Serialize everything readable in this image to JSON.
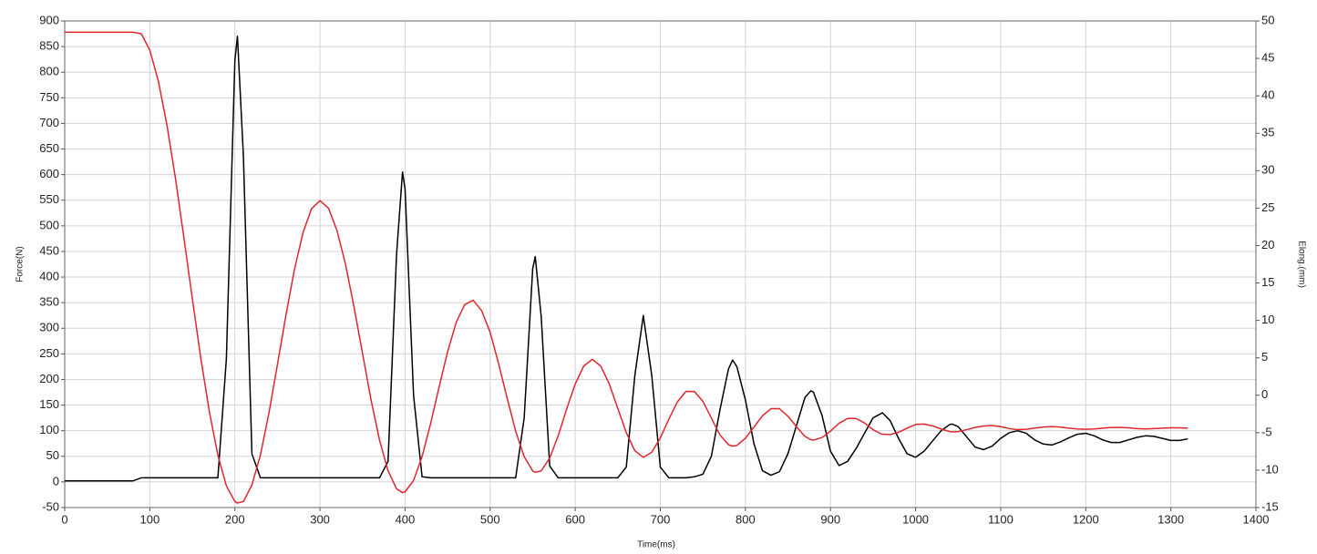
{
  "chart_data": {
    "type": "line",
    "x_label": "Time(ms)",
    "y_label": "Force(N)",
    "y2_label": "Elong.(mm)",
    "xlim": [
      0,
      1400
    ],
    "xticks": [
      0,
      100,
      200,
      300,
      400,
      500,
      600,
      700,
      800,
      900,
      1000,
      1100,
      1200,
      1300,
      1400
    ],
    "ylim": [
      -50,
      900
    ],
    "yticks": [
      -50,
      0,
      50,
      100,
      150,
      200,
      250,
      300,
      350,
      400,
      450,
      500,
      550,
      600,
      650,
      700,
      750,
      800,
      850,
      900
    ],
    "y2lim": [
      -15,
      50
    ],
    "y2ticks": [
      -15,
      -10,
      -5,
      0,
      5,
      10,
      15,
      20,
      25,
      30,
      35,
      40,
      45,
      50
    ],
    "grid": true,
    "x": [
      0,
      10,
      20,
      30,
      40,
      50,
      60,
      70,
      80,
      90,
      100,
      110,
      120,
      130,
      140,
      150,
      160,
      170,
      180,
      190,
      200,
      203,
      210,
      220,
      230,
      240,
      250,
      260,
      270,
      280,
      290,
      300,
      310,
      320,
      330,
      340,
      350,
      360,
      370,
      380,
      390,
      397,
      400,
      410,
      420,
      430,
      440,
      450,
      460,
      470,
      480,
      490,
      500,
      510,
      520,
      530,
      540,
      550,
      553,
      560,
      570,
      580,
      590,
      600,
      610,
      620,
      630,
      640,
      650,
      660,
      670,
      680,
      690,
      700,
      710,
      720,
      730,
      740,
      750,
      760,
      770,
      780,
      785,
      790,
      800,
      810,
      820,
      830,
      840,
      850,
      860,
      870,
      877,
      880,
      890,
      900,
      910,
      920,
      930,
      940,
      950,
      960,
      961,
      970,
      980,
      990,
      1000,
      1010,
      1020,
      1030,
      1040,
      1043,
      1050,
      1060,
      1070,
      1080,
      1090,
      1100,
      1110,
      1120,
      1130,
      1140,
      1150,
      1160,
      1170,
      1180,
      1190,
      1200,
      1210,
      1220,
      1230,
      1240,
      1250,
      1260,
      1270,
      1280,
      1290,
      1300,
      1310,
      1320
    ],
    "series": [
      {
        "color": "#000000",
        "values": [
          2,
          2,
          2,
          2,
          2,
          2,
          2,
          2,
          2,
          8,
          8,
          8,
          8,
          8,
          8,
          8,
          8,
          8,
          8,
          240,
          823,
          870,
          637,
          55,
          8,
          8,
          8,
          8,
          8,
          8,
          8,
          8,
          8,
          8,
          8,
          8,
          8,
          8,
          8,
          40,
          444,
          605,
          572,
          169,
          10,
          8,
          8,
          8,
          8,
          8,
          8,
          8,
          8,
          8,
          8,
          8,
          125,
          416,
          440,
          323,
          31,
          8,
          8,
          8,
          8,
          8,
          8,
          8,
          8,
          29,
          207,
          325,
          207,
          29,
          8,
          8,
          8,
          10,
          15,
          50,
          140,
          220,
          238,
          225,
          160,
          75,
          22,
          13,
          20,
          55,
          110,
          165,
          178,
          175,
          130,
          60,
          32,
          40,
          65,
          95,
          125,
          134,
          135,
          120,
          85,
          55,
          48,
          60,
          80,
          100,
          112,
          113,
          108,
          88,
          68,
          63,
          70,
          85,
          96,
          100,
          95,
          82,
          74,
          72,
          78,
          86,
          93,
          95,
          90,
          82,
          77,
          77,
          82,
          87,
          90,
          89,
          85,
          81,
          81,
          84
        ]
      },
      {
        "color": "#e0262b",
        "axis": "y2",
        "values": [
          48.5,
          48.5,
          48.5,
          48.5,
          48.5,
          48.5,
          48.5,
          48.5,
          48.5,
          48.3,
          46.1,
          42,
          36.2,
          29.1,
          21.1,
          12.9,
          4.9,
          -2.2,
          -8,
          -12.1,
          -14.2,
          -14.4,
          -14.2,
          -12,
          -8,
          -2.4,
          4.1,
          10.7,
          16.8,
          21.7,
          24.9,
          26,
          25,
          22,
          17.5,
          11.8,
          5.6,
          -0.6,
          -6,
          -10.1,
          -12.5,
          -13,
          -12.9,
          -11.4,
          -8.2,
          -3.8,
          1.1,
          5.8,
          9.7,
          12.1,
          12.7,
          11.3,
          8.4,
          4.2,
          -0.4,
          -4.8,
          -8.2,
          -10.1,
          -10.3,
          -10.1,
          -8.4,
          -5.4,
          -1.8,
          1.5,
          3.9,
          4.8,
          3.9,
          1.5,
          -1.75,
          -5,
          -7.4,
          -8.3,
          -7.6,
          -5.7,
          -3.2,
          -0.9,
          0.5,
          0.5,
          -0.8,
          -3.05,
          -5.3,
          -6.6,
          -6.8,
          -6.7,
          -5.75,
          -4.25,
          -2.75,
          -1.8,
          -1.8,
          -2.8,
          -4.2,
          -5.5,
          -5.95,
          -6,
          -5.65,
          -4.8,
          -3.75,
          -3.1,
          -3.1,
          -3.7,
          -4.6,
          -5.2,
          -5.2,
          -5.25,
          -4.95,
          -4.4,
          -3.9,
          -3.85,
          -4.1,
          -4.5,
          -4.85,
          -4.9,
          -4.85,
          -4.6,
          -4.3,
          -4.1,
          -4.05,
          -4.2,
          -4.45,
          -4.6,
          -4.55,
          -4.4,
          -4.25,
          -4.2,
          -4.25,
          -4.4,
          -4.5,
          -4.55,
          -4.5,
          -4.4,
          -4.3,
          -4.3,
          -4.35,
          -4.45,
          -4.5,
          -4.45,
          -4.4,
          -4.35,
          -4.35,
          -4.4
        ]
      }
    ]
  }
}
